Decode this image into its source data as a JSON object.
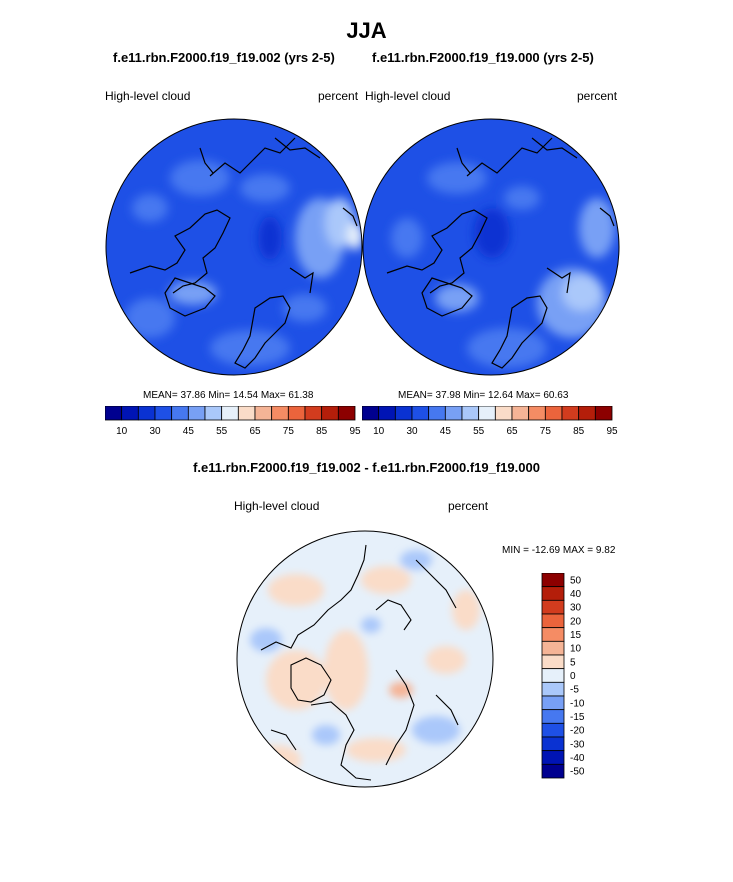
{
  "figure": {
    "title": "JJA",
    "left_panel_title": "f.e11.rbn.F2000.f19_f19.002 (yrs 2-5)",
    "right_panel_title": "f.e11.rbn.F2000.f19_f19.000 (yrs 2-5)",
    "diff_title": "f.e11.rbn.F2000.f19_f19.002 - f.e11.rbn.F2000.f19_f19.000"
  },
  "panels": {
    "left": {
      "variable": "High-level cloud",
      "units": "percent",
      "stats": "MEAN=  37.86  Min=  14.54  Max=  61.38"
    },
    "right": {
      "variable": "High-level cloud",
      "units": "percent",
      "stats": "MEAN=  37.98  Min=  12.64  Max=  60.63"
    },
    "diff": {
      "variable": "High-level cloud",
      "units": "percent",
      "stats": "MIN = -12.69 MAX =   9.82"
    }
  },
  "colors": {
    "abs_levels": [
      "#00008f",
      "#0014b4",
      "#0a32d2",
      "#1e50e6",
      "#4678f0",
      "#78a0f5",
      "#aac8fa",
      "#e6f0fa",
      "#fadcc8",
      "#f5b496",
      "#f58c64",
      "#eb643c",
      "#d23c1e",
      "#b41e0a",
      "#8c0000"
    ],
    "diff_levels": [
      "#00008f",
      "#0014b4",
      "#0a32d2",
      "#1e50e6",
      "#4678f0",
      "#78a0f5",
      "#aac8fa",
      "#e6f0fa",
      "#fadcc8",
      "#f5b496",
      "#f58c64",
      "#eb643c",
      "#d23c1e",
      "#b41e0a",
      "#8c0000"
    ]
  },
  "chart_data": [
    {
      "type": "heatmap",
      "projection": "north polar stereographic",
      "title": "f.e11.rbn.F2000.f19_f19.002 (yrs 2-5)",
      "variable": "High-level cloud",
      "units": "percent",
      "mean": 37.86,
      "min": 14.54,
      "max": 61.38,
      "colorbar_ticks": [
        "10",
        "30",
        "45",
        "55",
        "65",
        "75",
        "85",
        "95"
      ]
    },
    {
      "type": "heatmap",
      "projection": "north polar stereographic",
      "title": "f.e11.rbn.F2000.f19_f19.000 (yrs 2-5)",
      "variable": "High-level cloud",
      "units": "percent",
      "mean": 37.98,
      "min": 12.64,
      "max": 60.63,
      "colorbar_ticks": [
        "10",
        "30",
        "45",
        "55",
        "65",
        "75",
        "85",
        "95"
      ]
    },
    {
      "type": "heatmap",
      "projection": "north polar stereographic",
      "title": "f.e11.rbn.F2000.f19_f19.002 - f.e11.rbn.F2000.f19_f19.000",
      "variable": "High-level cloud",
      "units": "percent",
      "min": -12.69,
      "max": 9.82,
      "colorbar_ticks": [
        "50",
        "40",
        "30",
        "20",
        "15",
        "10",
        "5",
        "0",
        "-5",
        "-10",
        "-15",
        "-20",
        "-30",
        "-40",
        "-50"
      ]
    }
  ]
}
